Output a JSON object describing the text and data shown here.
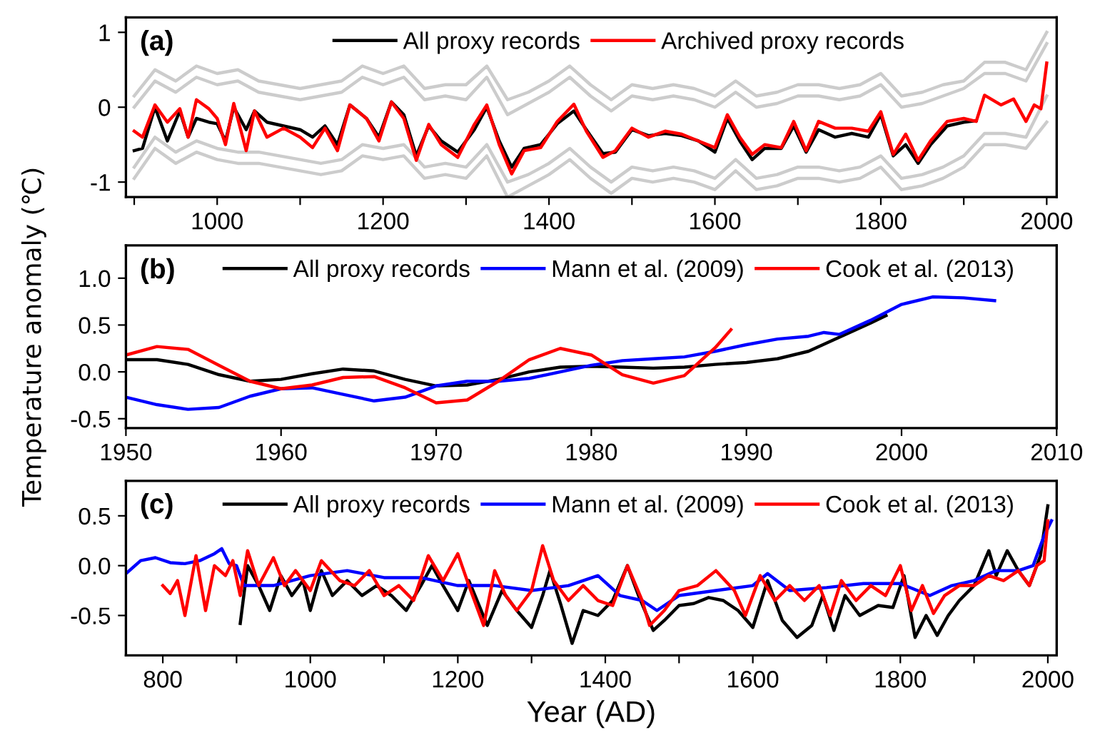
{
  "chart_data": [
    {
      "type": "line",
      "annotations": [
        "(a)"
      ],
      "xlim": [
        890,
        2012
      ],
      "ylim": [
        -1.2,
        1.2
      ],
      "xticks": [
        {
          "value": 900,
          "label": null
        },
        1000,
        {
          "value": 1100,
          "label": null
        },
        1200,
        {
          "value": 1300,
          "label": null
        },
        1400,
        {
          "value": 1500,
          "label": null
        },
        1600,
        {
          "value": 1700,
          "label": null
        },
        1800,
        {
          "value": 1900,
          "label": null
        },
        2000
      ],
      "yticks": [
        {
          "value": -1,
          "label": "-1"
        },
        0,
        1
      ],
      "legend": "top",
      "grid": false,
      "series": [
        {
          "color": "#cccccc",
          "x": [
            900,
            925,
            950,
            975,
            1000,
            1025,
            1050,
            1075,
            1100,
            1125,
            1150,
            1175,
            1200,
            1225,
            1250,
            1275,
            1300,
            1325,
            1350,
            1375,
            1400,
            1425,
            1450,
            1475,
            1500,
            1525,
            1550,
            1575,
            1600,
            1625,
            1650,
            1675,
            1700,
            1725,
            1750,
            1775,
            1800,
            1825,
            1850,
            1875,
            1900,
            1925,
            1950,
            1975,
            2000
          ],
          "values": [
            0.15,
            0.5,
            0.35,
            0.55,
            0.45,
            0.5,
            0.35,
            0.3,
            0.25,
            0.3,
            0.35,
            0.55,
            0.45,
            0.55,
            0.25,
            0.3,
            0.3,
            0.55,
            0.1,
            0.2,
            0.35,
            0.55,
            0.3,
            0.1,
            0.3,
            0.25,
            0.3,
            0.25,
            0.15,
            0.35,
            0.15,
            0.2,
            0.3,
            0.3,
            0.25,
            0.3,
            0.45,
            0.15,
            0.2,
            0.3,
            0.35,
            0.6,
            0.6,
            0.5,
            1.0
          ]
        },
        {
          "color": "#cccccc",
          "x": [
            900,
            925,
            950,
            975,
            1000,
            1025,
            1050,
            1075,
            1100,
            1125,
            1150,
            1175,
            1200,
            1225,
            1250,
            1275,
            1300,
            1325,
            1350,
            1375,
            1400,
            1425,
            1450,
            1475,
            1500,
            1525,
            1550,
            1575,
            1600,
            1625,
            1650,
            1675,
            1700,
            1725,
            1750,
            1775,
            1800,
            1825,
            1850,
            1875,
            1900,
            1925,
            1950,
            1975,
            2000
          ],
          "values": [
            0.0,
            0.35,
            0.2,
            0.4,
            0.3,
            0.35,
            0.2,
            0.15,
            0.1,
            0.15,
            0.2,
            0.4,
            0.3,
            0.4,
            0.1,
            0.15,
            0.1,
            0.4,
            -0.1,
            0.05,
            0.2,
            0.4,
            0.15,
            -0.05,
            0.15,
            0.1,
            0.15,
            0.1,
            0.0,
            0.2,
            0.0,
            0.05,
            0.15,
            0.15,
            0.1,
            0.15,
            0.3,
            0.0,
            0.05,
            0.15,
            0.25,
            0.45,
            0.45,
            0.35,
            0.85
          ]
        },
        {
          "color": "#cccccc",
          "x": [
            900,
            925,
            950,
            975,
            1000,
            1025,
            1050,
            1075,
            1100,
            1125,
            1150,
            1175,
            1200,
            1225,
            1250,
            1275,
            1300,
            1325,
            1350,
            1375,
            1400,
            1425,
            1450,
            1475,
            1500,
            1525,
            1550,
            1575,
            1600,
            1625,
            1650,
            1675,
            1700,
            1725,
            1750,
            1775,
            1800,
            1825,
            1850,
            1875,
            1900,
            1925,
            1950,
            1975,
            2000
          ],
          "values": [
            -0.8,
            -0.4,
            -0.6,
            -0.45,
            -0.55,
            -0.6,
            -0.6,
            -0.65,
            -0.7,
            -0.75,
            -0.7,
            -0.5,
            -0.55,
            -0.5,
            -0.8,
            -0.75,
            -0.8,
            -0.5,
            -1.0,
            -0.9,
            -0.75,
            -0.55,
            -0.8,
            -1.0,
            -0.8,
            -0.85,
            -0.8,
            -0.85,
            -0.95,
            -0.7,
            -0.95,
            -0.9,
            -0.8,
            -0.8,
            -0.85,
            -0.8,
            -0.65,
            -0.95,
            -0.9,
            -0.8,
            -0.65,
            -0.35,
            -0.35,
            -0.4,
            0.15
          ]
        },
        {
          "color": "#cccccc",
          "x": [
            900,
            925,
            950,
            975,
            1000,
            1025,
            1050,
            1075,
            1100,
            1125,
            1150,
            1175,
            1200,
            1225,
            1250,
            1275,
            1300,
            1325,
            1350,
            1375,
            1400,
            1425,
            1450,
            1475,
            1500,
            1525,
            1550,
            1575,
            1600,
            1625,
            1650,
            1675,
            1700,
            1725,
            1750,
            1775,
            1800,
            1825,
            1850,
            1875,
            1900,
            1925,
            1950,
            1975,
            2000
          ],
          "values": [
            -0.95,
            -0.55,
            -0.75,
            -0.6,
            -0.7,
            -0.75,
            -0.75,
            -0.8,
            -0.85,
            -0.9,
            -0.85,
            -0.65,
            -0.7,
            -0.65,
            -0.95,
            -0.9,
            -0.95,
            -0.65,
            -1.2,
            -1.05,
            -0.9,
            -0.7,
            -0.95,
            -1.15,
            -0.95,
            -1.0,
            -0.95,
            -1.0,
            -1.1,
            -0.85,
            -1.1,
            -1.05,
            -0.95,
            -0.95,
            -1.0,
            -0.95,
            -0.8,
            -1.1,
            -1.05,
            -0.95,
            -0.8,
            -0.5,
            -0.5,
            -0.55,
            -0.2
          ]
        },
        {
          "name": "All proxy records",
          "color": "#000000",
          "x": [
            900,
            910,
            925,
            940,
            955,
            965,
            975,
            990,
            1000,
            1010,
            1020,
            1035,
            1045,
            1060,
            1080,
            1100,
            1115,
            1130,
            1145,
            1160,
            1180,
            1195,
            1210,
            1225,
            1240,
            1255,
            1270,
            1290,
            1310,
            1325,
            1340,
            1355,
            1370,
            1390,
            1410,
            1430,
            1445,
            1465,
            1480,
            1500,
            1520,
            1540,
            1560,
            1580,
            1600,
            1615,
            1630,
            1645,
            1660,
            1680,
            1695,
            1710,
            1725,
            1745,
            1765,
            1785,
            1800,
            1815,
            1830,
            1845,
            1860,
            1880,
            1900,
            1915
          ],
          "values": [
            -0.58,
            -0.55,
            0.0,
            -0.45,
            -0.05,
            -0.4,
            -0.15,
            -0.2,
            -0.22,
            -0.45,
            0.0,
            -0.3,
            -0.05,
            -0.2,
            -0.25,
            -0.3,
            -0.4,
            -0.25,
            -0.5,
            0.03,
            -0.15,
            -0.4,
            0.07,
            -0.1,
            -0.65,
            -0.25,
            -0.45,
            -0.6,
            -0.3,
            0.0,
            -0.45,
            -0.8,
            -0.55,
            -0.5,
            -0.22,
            -0.05,
            -0.3,
            -0.62,
            -0.6,
            -0.3,
            -0.38,
            -0.35,
            -0.38,
            -0.45,
            -0.6,
            -0.15,
            -0.45,
            -0.7,
            -0.55,
            -0.55,
            -0.25,
            -0.6,
            -0.3,
            -0.4,
            -0.35,
            -0.4,
            -0.1,
            -0.65,
            -0.5,
            -0.75,
            -0.5,
            -0.25,
            -0.2,
            -0.18
          ]
        },
        {
          "name": "Archived proxy records",
          "color": "#ff0000",
          "x": [
            900,
            910,
            925,
            940,
            955,
            965,
            975,
            990,
            1000,
            1010,
            1020,
            1035,
            1045,
            1060,
            1080,
            1100,
            1115,
            1130,
            1145,
            1160,
            1180,
            1195,
            1210,
            1225,
            1240,
            1255,
            1270,
            1290,
            1310,
            1325,
            1340,
            1355,
            1370,
            1390,
            1410,
            1430,
            1445,
            1465,
            1480,
            1500,
            1520,
            1540,
            1560,
            1580,
            1600,
            1615,
            1630,
            1645,
            1660,
            1680,
            1695,
            1710,
            1725,
            1745,
            1765,
            1785,
            1800,
            1815,
            1830,
            1845,
            1860,
            1880,
            1900,
            1915,
            1925,
            1945,
            1960,
            1975,
            1985,
            1993,
            2000
          ],
          "values": [
            -0.32,
            -0.4,
            0.03,
            -0.2,
            -0.02,
            -0.4,
            0.1,
            -0.02,
            -0.15,
            -0.5,
            0.05,
            -0.58,
            -0.05,
            -0.4,
            -0.28,
            -0.4,
            -0.54,
            -0.28,
            -0.58,
            0.03,
            -0.15,
            -0.45,
            0.07,
            -0.15,
            -0.71,
            -0.23,
            -0.5,
            -0.67,
            -0.23,
            0.03,
            -0.5,
            -0.89,
            -0.58,
            -0.54,
            -0.19,
            0.04,
            -0.32,
            -0.67,
            -0.58,
            -0.28,
            -0.4,
            -0.32,
            -0.36,
            -0.45,
            -0.54,
            -0.1,
            -0.4,
            -0.63,
            -0.5,
            -0.54,
            -0.19,
            -0.58,
            -0.19,
            -0.28,
            -0.28,
            -0.32,
            -0.06,
            -0.63,
            -0.36,
            -0.71,
            -0.45,
            -0.19,
            -0.15,
            -0.19,
            0.16,
            0.03,
            0.11,
            -0.19,
            0.03,
            -0.02,
            0.59
          ]
        }
      ]
    },
    {
      "type": "line",
      "annotations": [
        "(b)"
      ],
      "ylabel": "Temperature anomaly (℃)",
      "xlim": [
        1950,
        2010
      ],
      "ylim": [
        -0.6,
        1.35
      ],
      "xticks": [
        1950,
        1960,
        1970,
        1980,
        1990,
        2000,
        2010
      ],
      "yticks": [
        {
          "value": -0.5,
          "label": "-0.5"
        },
        {
          "value": 0,
          "label": "0.0"
        },
        0.5,
        {
          "value": 1,
          "label": "1.0"
        }
      ],
      "legend": "top",
      "grid": false,
      "series": [
        {
          "name": "All proxy records",
          "color": "#000000",
          "x": [
            1950,
            1952,
            1954,
            1956,
            1958,
            1960,
            1962,
            1964,
            1966,
            1968,
            1970,
            1972,
            1974,
            1976,
            1978,
            1980,
            1982,
            1984,
            1986,
            1988,
            1990,
            1992,
            1994,
            1996,
            1998,
            1999
          ],
          "values": [
            0.13,
            0.13,
            0.08,
            -0.03,
            -0.1,
            -0.08,
            -0.02,
            0.03,
            0.01,
            -0.08,
            -0.15,
            -0.14,
            -0.08,
            0.0,
            0.05,
            0.06,
            0.05,
            0.04,
            0.05,
            0.08,
            0.1,
            0.14,
            0.22,
            0.37,
            0.52,
            0.6
          ]
        },
        {
          "name": "Mann et al. (2009)",
          "color": "#0000ff",
          "x": [
            1950,
            1952,
            1954,
            1956,
            1958,
            1960,
            1962,
            1964,
            1966,
            1968,
            1970,
            1972,
            1974,
            1976,
            1978,
            1980,
            1982,
            1984,
            1986,
            1988,
            1990,
            1992,
            1994,
            1995,
            1996,
            1998,
            2000,
            2002,
            2004,
            2006
          ],
          "values": [
            -0.27,
            -0.35,
            -0.4,
            -0.38,
            -0.26,
            -0.18,
            -0.17,
            -0.24,
            -0.31,
            -0.27,
            -0.15,
            -0.1,
            -0.1,
            -0.07,
            0.0,
            0.07,
            0.12,
            0.14,
            0.16,
            0.22,
            0.29,
            0.35,
            0.38,
            0.42,
            0.4,
            0.55,
            0.72,
            0.8,
            0.79,
            0.76
          ]
        },
        {
          "name": "Cook et al. (2013)",
          "color": "#ff0000",
          "x": [
            1950,
            1952,
            1954,
            1956,
            1958,
            1960,
            1962,
            1964,
            1966,
            1968,
            1970,
            1972,
            1974,
            1976,
            1978,
            1980,
            1982,
            1984,
            1986,
            1988,
            1989
          ],
          "values": [
            0.18,
            0.27,
            0.24,
            0.07,
            -0.1,
            -0.18,
            -0.14,
            -0.06,
            -0.05,
            -0.17,
            -0.33,
            -0.3,
            -0.1,
            0.13,
            0.25,
            0.18,
            -0.03,
            -0.12,
            -0.04,
            0.26,
            0.45
          ]
        }
      ]
    },
    {
      "type": "line",
      "annotations": [
        "(c)"
      ],
      "xlabel": "Year (AD)",
      "xlim": [
        750,
        2012
      ],
      "ylim": [
        -0.9,
        0.85
      ],
      "xticks": [
        800,
        {
          "value": 900,
          "label": null
        },
        1000,
        {
          "value": 1100,
          "label": null
        },
        1200,
        {
          "value": 1300,
          "label": null
        },
        1400,
        {
          "value": 1500,
          "label": null
        },
        1600,
        {
          "value": 1700,
          "label": null
        },
        1800,
        {
          "value": 1900,
          "label": null
        },
        2000
      ],
      "yticks": [
        {
          "value": -0.5,
          "label": "-0.5"
        },
        {
          "value": 0,
          "label": "0.0"
        },
        0.5
      ],
      "legend": "top",
      "grid": false,
      "series": [
        {
          "name": "All proxy records",
          "color": "#000000",
          "x": [
            905,
            915,
            930,
            945,
            960,
            975,
            990,
            1000,
            1015,
            1030,
            1050,
            1070,
            1090,
            1110,
            1130,
            1150,
            1165,
            1180,
            1200,
            1215,
            1240,
            1260,
            1280,
            1300,
            1315,
            1325,
            1340,
            1355,
            1370,
            1390,
            1410,
            1430,
            1445,
            1465,
            1480,
            1500,
            1520,
            1540,
            1560,
            1580,
            1600,
            1620,
            1640,
            1660,
            1680,
            1695,
            1710,
            1725,
            1745,
            1770,
            1790,
            1805,
            1820,
            1835,
            1850,
            1865,
            1880,
            1900,
            1920,
            1930,
            1945,
            1960,
            1975,
            1990,
            2000
          ],
          "values": [
            -0.58,
            0.0,
            -0.2,
            -0.45,
            -0.1,
            -0.3,
            -0.15,
            -0.45,
            -0.05,
            -0.3,
            -0.15,
            -0.3,
            -0.2,
            -0.3,
            -0.45,
            -0.2,
            0.0,
            -0.2,
            -0.45,
            -0.15,
            -0.6,
            -0.25,
            -0.45,
            -0.62,
            -0.3,
            -0.05,
            -0.4,
            -0.78,
            -0.45,
            -0.5,
            -0.35,
            0.0,
            -0.3,
            -0.65,
            -0.55,
            -0.4,
            -0.38,
            -0.32,
            -0.35,
            -0.45,
            -0.62,
            -0.15,
            -0.55,
            -0.72,
            -0.6,
            -0.3,
            -0.65,
            -0.3,
            -0.5,
            -0.4,
            -0.42,
            -0.1,
            -0.72,
            -0.5,
            -0.7,
            -0.5,
            -0.35,
            -0.2,
            0.15,
            -0.1,
            0.15,
            -0.05,
            -0.2,
            0.1,
            0.6
          ]
        },
        {
          "name": "Mann et al. (2009)",
          "color": "#0000ff",
          "x": [
            750,
            770,
            790,
            810,
            830,
            850,
            870,
            880,
            890,
            900,
            910,
            950,
            1000,
            1050,
            1100,
            1150,
            1200,
            1250,
            1300,
            1350,
            1390,
            1420,
            1450,
            1470,
            1500,
            1550,
            1600,
            1620,
            1650,
            1700,
            1750,
            1800,
            1840,
            1870,
            1900,
            1930,
            1960,
            1980,
            1995,
            2005
          ],
          "values": [
            -0.08,
            0.05,
            0.08,
            0.03,
            0.02,
            0.05,
            0.12,
            0.17,
            0.02,
            0.0,
            -0.2,
            -0.2,
            -0.1,
            -0.05,
            -0.12,
            -0.12,
            -0.2,
            -0.2,
            -0.25,
            -0.2,
            -0.1,
            -0.3,
            -0.35,
            -0.45,
            -0.3,
            -0.25,
            -0.2,
            -0.08,
            -0.25,
            -0.22,
            -0.18,
            -0.18,
            -0.3,
            -0.2,
            -0.15,
            -0.05,
            -0.05,
            0.0,
            0.3,
            0.45
          ]
        },
        {
          "name": "Cook et al. (2013)",
          "color": "#ff0000",
          "x": [
            800,
            810,
            820,
            830,
            845,
            858,
            870,
            885,
            895,
            905,
            915,
            930,
            950,
            965,
            980,
            1000,
            1015,
            1040,
            1060,
            1080,
            1100,
            1120,
            1140,
            1160,
            1180,
            1200,
            1215,
            1235,
            1250,
            1265,
            1280,
            1300,
            1315,
            1330,
            1350,
            1370,
            1390,
            1410,
            1430,
            1450,
            1460,
            1480,
            1500,
            1525,
            1550,
            1575,
            1590,
            1610,
            1630,
            1650,
            1670,
            1690,
            1705,
            1720,
            1740,
            1760,
            1780,
            1800,
            1815,
            1830,
            1845,
            1860,
            1880,
            1900,
            1920,
            1940,
            1960,
            1975,
            1985,
            1995,
            2000
          ],
          "values": [
            -0.2,
            -0.28,
            -0.15,
            -0.5,
            0.1,
            -0.45,
            0.0,
            -0.1,
            0.05,
            -0.3,
            0.15,
            -0.2,
            0.08,
            -0.2,
            -0.05,
            -0.25,
            0.05,
            -0.15,
            -0.2,
            -0.05,
            -0.3,
            -0.2,
            -0.35,
            0.1,
            -0.15,
            0.12,
            -0.2,
            -0.6,
            -0.05,
            -0.3,
            -0.45,
            -0.25,
            0.2,
            -0.15,
            -0.35,
            -0.2,
            -0.35,
            -0.4,
            0.0,
            -0.35,
            -0.6,
            -0.45,
            -0.25,
            -0.2,
            -0.05,
            -0.25,
            -0.5,
            -0.1,
            -0.35,
            -0.2,
            -0.35,
            -0.2,
            -0.5,
            -0.15,
            -0.35,
            -0.2,
            -0.3,
            0.0,
            -0.45,
            -0.2,
            -0.48,
            -0.3,
            -0.2,
            -0.2,
            -0.1,
            -0.15,
            -0.05,
            -0.2,
            0.0,
            0.05,
            0.45
          ]
        }
      ]
    }
  ]
}
